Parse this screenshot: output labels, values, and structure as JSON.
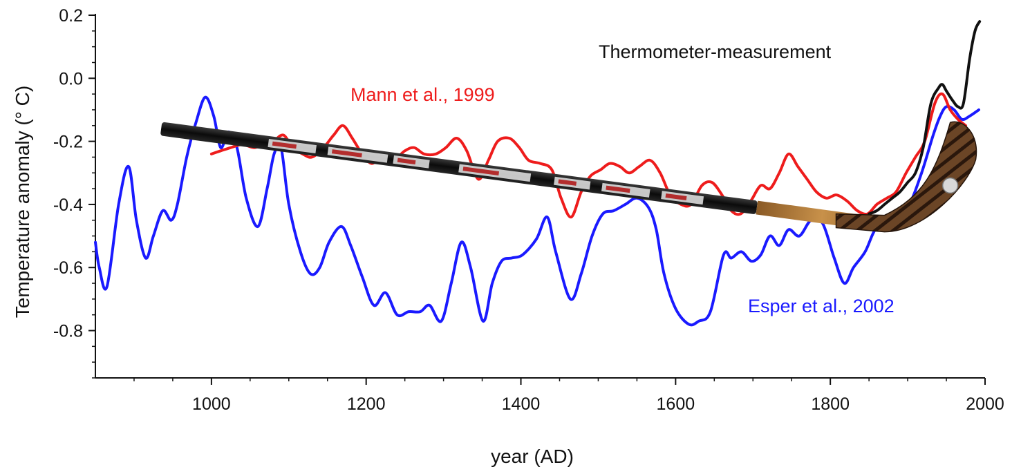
{
  "chart_data": {
    "type": "line",
    "title": "",
    "xlabel": "year (AD)",
    "ylabel": "Temperature anomaly (° C)",
    "xlim": [
      850,
      2000
    ],
    "ylim": [
      -0.95,
      0.2
    ],
    "x_ticks": [
      1000,
      1200,
      1400,
      1600,
      1800,
      2000
    ],
    "y_ticks": [
      0.2,
      0.0,
      -0.2,
      -0.4,
      -0.6,
      -0.8
    ],
    "y_tick_labels": [
      "0.2",
      "0.0",
      "-0.2",
      "-0.4",
      "-0.6",
      "-0.8"
    ],
    "grid": false,
    "series": [
      {
        "name": "Esper et al., 2002",
        "color": "#1a1aff",
        "x": [
          850,
          855,
          865,
          880,
          893,
          903,
          915,
          925,
          937,
          948,
          956,
          968,
          980,
          992,
          1003,
          1012,
          1022,
          1033,
          1045,
          1060,
          1072,
          1081,
          1090,
          1100,
          1115,
          1128,
          1140,
          1152,
          1168,
          1180,
          1195,
          1210,
          1225,
          1240,
          1255,
          1270,
          1282,
          1297,
          1310,
          1323,
          1335,
          1351,
          1363,
          1375,
          1388,
          1402,
          1420,
          1434,
          1445,
          1464,
          1478,
          1492,
          1506,
          1520,
          1535,
          1550,
          1565,
          1575,
          1585,
          1600,
          1617,
          1630,
          1645,
          1662,
          1672,
          1685,
          1698,
          1710,
          1722,
          1734,
          1746,
          1760,
          1775,
          1790,
          1805,
          1818,
          1830,
          1845,
          1858,
          1873,
          1888,
          1902,
          1918,
          1933,
          1942,
          1950,
          1960,
          1970,
          1980,
          1992
        ],
        "y": [
          -0.52,
          -0.6,
          -0.66,
          -0.4,
          -0.28,
          -0.45,
          -0.57,
          -0.5,
          -0.42,
          -0.45,
          -0.4,
          -0.25,
          -0.14,
          -0.06,
          -0.12,
          -0.22,
          -0.17,
          -0.22,
          -0.38,
          -0.47,
          -0.35,
          -0.24,
          -0.22,
          -0.4,
          -0.55,
          -0.62,
          -0.6,
          -0.52,
          -0.47,
          -0.53,
          -0.63,
          -0.72,
          -0.68,
          -0.75,
          -0.74,
          -0.74,
          -0.72,
          -0.77,
          -0.65,
          -0.52,
          -0.6,
          -0.77,
          -0.65,
          -0.58,
          -0.57,
          -0.56,
          -0.51,
          -0.44,
          -0.55,
          -0.7,
          -0.62,
          -0.5,
          -0.43,
          -0.42,
          -0.4,
          -0.38,
          -0.41,
          -0.48,
          -0.62,
          -0.73,
          -0.78,
          -0.77,
          -0.74,
          -0.56,
          -0.57,
          -0.55,
          -0.58,
          -0.56,
          -0.5,
          -0.53,
          -0.48,
          -0.5,
          -0.45,
          -0.46,
          -0.57,
          -0.65,
          -0.6,
          -0.55,
          -0.48,
          -0.46,
          -0.42,
          -0.4,
          -0.3,
          -0.18,
          -0.12,
          -0.09,
          -0.1,
          -0.13,
          -0.12,
          -0.1
        ]
      },
      {
        "name": "Mann et al., 1999",
        "color": "#ee1c1c",
        "x": [
          1000,
          1012,
          1025,
          1040,
          1055,
          1068,
          1080,
          1093,
          1105,
          1118,
          1130,
          1145,
          1158,
          1170,
          1182,
          1195,
          1207,
          1220,
          1235,
          1250,
          1262,
          1275,
          1290,
          1303,
          1317,
          1330,
          1345,
          1358,
          1370,
          1385,
          1398,
          1410,
          1425,
          1440,
          1452,
          1465,
          1478,
          1490,
          1503,
          1515,
          1528,
          1540,
          1553,
          1567,
          1580,
          1593,
          1607,
          1620,
          1634,
          1647,
          1660,
          1672,
          1684,
          1697,
          1710,
          1722,
          1734,
          1746,
          1758,
          1770,
          1782,
          1795,
          1808,
          1822,
          1835,
          1848,
          1860,
          1873,
          1885,
          1898,
          1910,
          1922,
          1935,
          1945,
          1955,
          1965,
          1975
        ],
        "y": [
          -0.24,
          -0.23,
          -0.22,
          -0.21,
          -0.22,
          -0.21,
          -0.2,
          -0.18,
          -0.22,
          -0.24,
          -0.25,
          -0.22,
          -0.18,
          -0.15,
          -0.19,
          -0.24,
          -0.27,
          -0.25,
          -0.26,
          -0.23,
          -0.22,
          -0.24,
          -0.24,
          -0.22,
          -0.19,
          -0.23,
          -0.32,
          -0.26,
          -0.2,
          -0.19,
          -0.22,
          -0.26,
          -0.27,
          -0.29,
          -0.38,
          -0.44,
          -0.36,
          -0.31,
          -0.29,
          -0.27,
          -0.28,
          -0.3,
          -0.28,
          -0.26,
          -0.3,
          -0.37,
          -0.4,
          -0.4,
          -0.34,
          -0.33,
          -0.37,
          -0.42,
          -0.43,
          -0.39,
          -0.34,
          -0.35,
          -0.3,
          -0.24,
          -0.28,
          -0.32,
          -0.36,
          -0.38,
          -0.37,
          -0.39,
          -0.42,
          -0.43,
          -0.4,
          -0.38,
          -0.36,
          -0.3,
          -0.25,
          -0.2,
          -0.08,
          -0.05,
          -0.1,
          -0.13,
          -0.15
        ]
      },
      {
        "name": "Thermometer-measurement",
        "color": "#111111",
        "x": [
          1850,
          1860,
          1870,
          1880,
          1890,
          1900,
          1910,
          1920,
          1930,
          1940,
          1945,
          1950,
          1958,
          1965,
          1972,
          1980,
          1987,
          1993
        ],
        "y": [
          -0.43,
          -0.42,
          -0.4,
          -0.38,
          -0.36,
          -0.33,
          -0.3,
          -0.22,
          -0.08,
          -0.03,
          -0.02,
          -0.04,
          -0.07,
          -0.09,
          -0.08,
          0.06,
          0.15,
          0.18
        ]
      }
    ],
    "annotations": [
      {
        "text": "Thermometer-measurement",
        "color": "#111111"
      },
      {
        "text": "Mann et al., 1999",
        "color": "#ee1c1c"
      },
      {
        "text": "Esper et al., 2002",
        "color": "#1a1aff"
      }
    ],
    "overlay": "hockey-stick-illustration"
  }
}
